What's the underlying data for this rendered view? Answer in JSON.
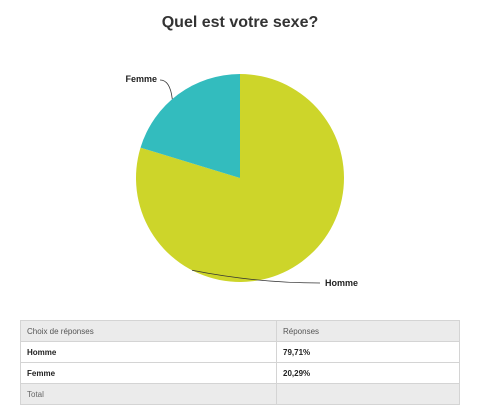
{
  "title": "Quel est votre sexe?",
  "colors": {
    "homme": "#cdd52a",
    "femme": "#33bcbe"
  },
  "chart_data": {
    "type": "pie",
    "title": "Quel est votre sexe?",
    "categories": [
      "Homme",
      "Femme"
    ],
    "values": [
      79.71,
      20.29
    ],
    "legend": "none"
  },
  "table": {
    "headers": [
      "Choix de réponses",
      "Réponses"
    ],
    "rows": [
      {
        "choice": "Homme",
        "response": "79,71%"
      },
      {
        "choice": "Femme",
        "response": "20,29%"
      }
    ],
    "total_label": "Total"
  }
}
